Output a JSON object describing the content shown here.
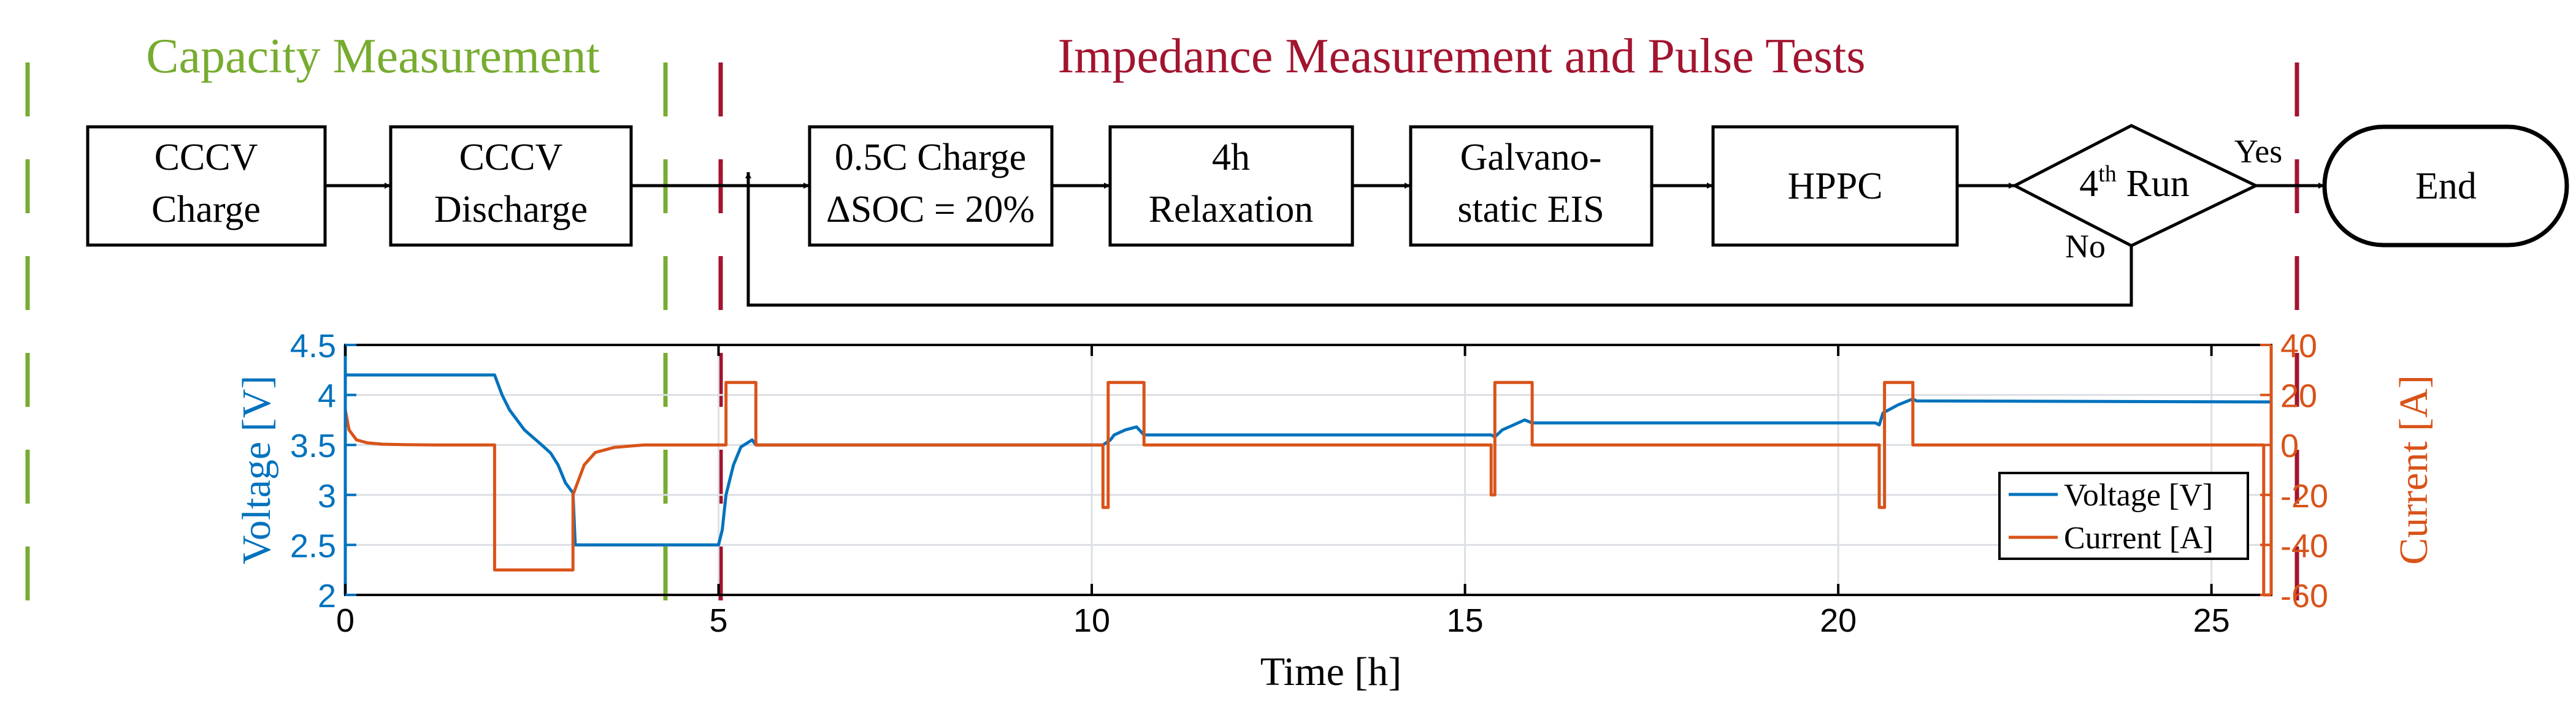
{
  "phases": {
    "capacity": {
      "label": "Capacity Measurement",
      "color": "#77ac30"
    },
    "impedance": {
      "label": "Impedance Measurement and Pulse Tests",
      "color": "#a2142f"
    }
  },
  "flow": {
    "cccv_charge": [
      "CCCV",
      "Charge"
    ],
    "cccv_discharge": [
      "CCCV",
      "Discharge"
    ],
    "charge_step": [
      "0.5C Charge",
      "ΔSOC = 20%"
    ],
    "relaxation": [
      "4h",
      "Relaxation"
    ],
    "eis": [
      "Galvano-",
      "static EIS"
    ],
    "hppc": "HPPC",
    "decision": {
      "base": "4",
      "sup": "th",
      "suffix": " Run"
    },
    "yes_label": "Yes",
    "no_label": "No",
    "end": "End"
  },
  "chart_data": {
    "type": "line",
    "xlabel": "Time [h]",
    "ylabel_left": "Voltage [V]",
    "ylabel_right": "Current [A]",
    "xlim": [
      0,
      25.8
    ],
    "ylim_left": [
      2,
      4.5
    ],
    "ylim_right": [
      -60,
      40
    ],
    "x_ticks": [
      0,
      5,
      10,
      15,
      20,
      25
    ],
    "y_ticks_left": [
      2,
      2.5,
      3,
      3.5,
      4,
      4.5
    ],
    "y_ticks_right": [
      -60,
      -40,
      -20,
      0,
      20,
      40
    ],
    "grid": true,
    "legend_position": "bottom-right",
    "colors": {
      "voltage": "#0072bd",
      "current": "#d95319",
      "axis_left": "#0072bd",
      "axis_right": "#d95319"
    },
    "series": [
      {
        "name": "Voltage [V]",
        "axis": "left",
        "x": [
          0,
          2.0,
          2.1,
          2.2,
          2.4,
          2.6,
          2.75,
          2.85,
          2.95,
          3.05,
          3.08,
          5.0,
          5.05,
          5.1,
          5.2,
          5.3,
          5.45,
          5.5,
          10.15,
          10.25,
          10.3,
          10.45,
          10.6,
          10.7,
          15.35,
          15.4,
          15.5,
          15.65,
          15.8,
          15.9,
          20.5,
          20.55,
          20.6,
          20.8,
          21.0,
          21.05,
          25.8
        ],
        "y": [
          4.2,
          4.2,
          4.0,
          3.85,
          3.65,
          3.52,
          3.42,
          3.3,
          3.12,
          3.02,
          2.5,
          2.5,
          2.65,
          3.0,
          3.3,
          3.48,
          3.55,
          3.5,
          3.5,
          3.55,
          3.6,
          3.65,
          3.68,
          3.6,
          3.6,
          3.58,
          3.65,
          3.7,
          3.75,
          3.72,
          3.72,
          3.7,
          3.82,
          3.9,
          3.96,
          3.94,
          3.93
        ]
      },
      {
        "name": "Current [A]",
        "axis": "right",
        "x": [
          0,
          0.05,
          0.15,
          0.3,
          0.5,
          0.8,
          1.2,
          2.0,
          2.0,
          3.05,
          3.05,
          3.2,
          3.35,
          3.6,
          4.0,
          5.0,
          5.1,
          5.1,
          5.5,
          5.5,
          10.15,
          10.15,
          10.22,
          10.22,
          10.3,
          10.3,
          10.7,
          10.7,
          15.35,
          15.35,
          15.4,
          15.4,
          15.45,
          15.45,
          15.9,
          15.9,
          20.55,
          20.55,
          20.62,
          20.62,
          20.7,
          20.7,
          21.0,
          21.0,
          25.7,
          25.7,
          25.8
        ],
        "y": [
          14,
          6,
          2,
          0.8,
          0.3,
          0.1,
          0,
          0,
          -50,
          -50,
          -20,
          -8,
          -3,
          -1,
          0,
          0,
          0,
          25,
          25,
          0,
          0,
          -25,
          -25,
          25,
          25,
          25,
          25,
          0,
          0,
          -20,
          -20,
          25,
          25,
          25,
          25,
          0,
          0,
          -25,
          -25,
          25,
          25,
          25,
          25,
          0,
          0,
          -60,
          -60
        ]
      }
    ]
  }
}
